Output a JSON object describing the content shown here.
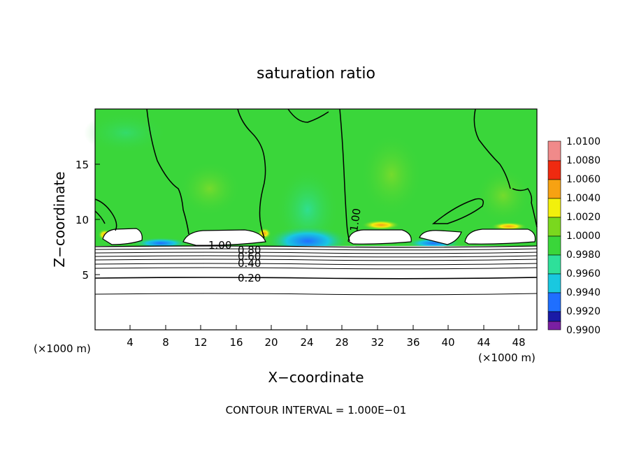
{
  "chart_data": {
    "type": "heatmap",
    "title": "saturation ratio",
    "xlabel": "X−coordinate",
    "ylabel": "Z−coordinate",
    "x_unit_left": "(×1000 m)",
    "x_unit_right": "(×1000 m)",
    "xlim": [
      0,
      50
    ],
    "ylim": [
      0,
      20
    ],
    "x_ticks": [
      4,
      8,
      12,
      16,
      20,
      24,
      28,
      32,
      36,
      40,
      44,
      48
    ],
    "x_tick_labels": [
      "4",
      "8",
      "12",
      "16",
      "20",
      "24",
      "28",
      "32",
      "36",
      "40",
      "44",
      "48"
    ],
    "y_ticks": [
      5,
      10,
      15
    ],
    "y_tick_labels": [
      "5",
      "10",
      "15"
    ],
    "colorbar": {
      "levels": [
        "0.9900",
        "0.9920",
        "0.9940",
        "0.9960",
        "0.9980",
        "1.0000",
        "1.0020",
        "1.0040",
        "1.0060",
        "1.0080",
        "1.0100"
      ],
      "colors": [
        "#7a1fa2",
        "#1a1aa6",
        "#1f6fff",
        "#19c8e0",
        "#2ee09a",
        "#3ad63a",
        "#7ad81e",
        "#f2f00c",
        "#f7a212",
        "#ef2a10",
        "#f08a8a"
      ]
    },
    "contour_labels": [
      {
        "text": "1.00",
        "x": 28.2,
        "z": 10.2
      },
      {
        "text": "1.00",
        "x": 13.6,
        "z": 7.8
      },
      {
        "text": "0.80",
        "x": 17.5,
        "z": 7.4
      },
      {
        "text": "0.60",
        "x": 17.5,
        "z": 6.8
      },
      {
        "text": "0.40",
        "x": 17.5,
        "z": 6.2
      },
      {
        "text": "0.20",
        "x": 17.8,
        "z": 4.8
      }
    ],
    "annotation": "CONTOUR INTERVAL = 1.000E−01"
  }
}
